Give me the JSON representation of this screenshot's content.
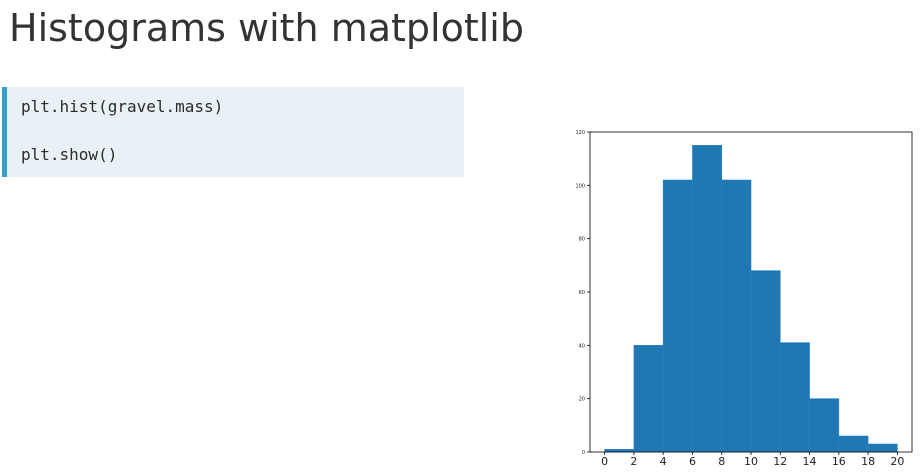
{
  "slide": {
    "title": "Histograms with matplotlib"
  },
  "code": {
    "lines": [
      "plt.hist(gravel.mass)",
      "plt.show()"
    ]
  },
  "chart_data": {
    "type": "bar",
    "bins": [
      {
        "x0": 0,
        "x1": 2,
        "count": 1
      },
      {
        "x0": 2,
        "x1": 4,
        "count": 40
      },
      {
        "x0": 4,
        "x1": 6,
        "count": 102
      },
      {
        "x0": 6,
        "x1": 8,
        "count": 115
      },
      {
        "x0": 8,
        "x1": 10,
        "count": 102
      },
      {
        "x0": 10,
        "x1": 12,
        "count": 68
      },
      {
        "x0": 12,
        "x1": 14,
        "count": 41
      },
      {
        "x0": 14,
        "x1": 16,
        "count": 20
      },
      {
        "x0": 16,
        "x1": 18,
        "count": 6
      },
      {
        "x0": 18,
        "x1": 20,
        "count": 3
      }
    ],
    "xlim": [
      -1,
      21
    ],
    "ylim": [
      0,
      120
    ],
    "x_ticks": [
      0,
      2,
      4,
      6,
      8,
      10,
      12,
      14,
      16,
      18,
      20
    ],
    "y_ticks": [
      0,
      20,
      40,
      60,
      80,
      100,
      120
    ],
    "bar_color": "#1f77b4",
    "edge_color": "#2f86c0",
    "grid": false,
    "title": "",
    "xlabel": "",
    "ylabel": ""
  }
}
